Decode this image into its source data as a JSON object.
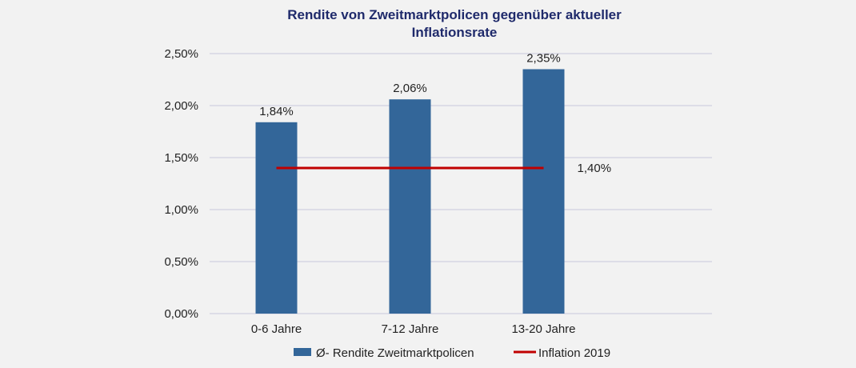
{
  "chart_data": {
    "type": "bar",
    "title_line1": "Rendite von Zweitmarktpolicen gegenüber aktueller",
    "title_line2": "Inflationsrate",
    "categories": [
      "0-6 Jahre",
      "7-12 Jahre",
      "13-20 Jahre"
    ],
    "series": [
      {
        "name": "Ø- Rendite Zweitmarktpolicen",
        "type": "bar",
        "values": [
          1.84,
          2.06,
          2.35
        ],
        "labels": [
          "1,84%",
          "2,06%",
          "2,35%"
        ],
        "color": "#336699"
      },
      {
        "name": "Inflation 2019",
        "type": "line",
        "value": 1.4,
        "label": "1,40%",
        "color": "#c00000"
      }
    ],
    "ylim": [
      0,
      2.5
    ],
    "yticks": [
      0,
      0.5,
      1.0,
      1.5,
      2.0,
      2.5
    ],
    "ytick_labels": [
      "0,00%",
      "0,50%",
      "1,00%",
      "1,50%",
      "2,00%",
      "2,50%"
    ],
    "grid": true,
    "legend_position": "bottom",
    "gridline_color": "#c8c8dc"
  }
}
